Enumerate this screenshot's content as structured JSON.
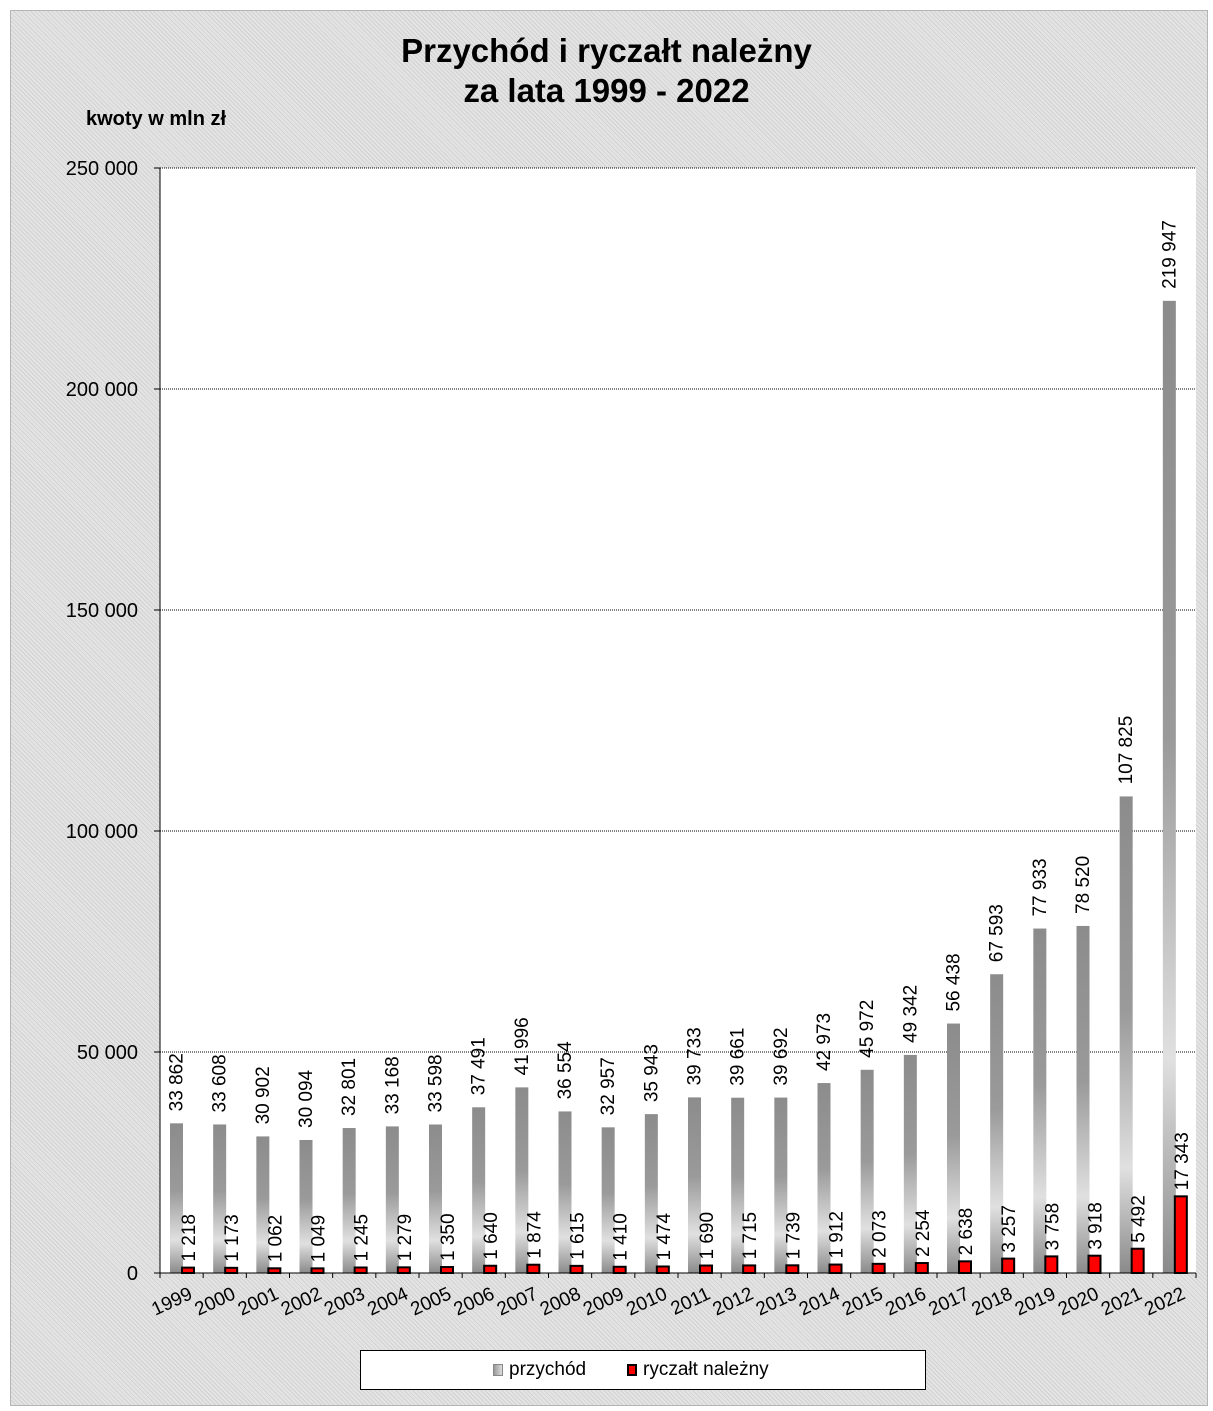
{
  "chart_data": {
    "type": "bar",
    "title": [
      "Przychód i ryczałt należny",
      "za lata 1999 - 2022"
    ],
    "unit_label": "kwoty w mln zł",
    "categories": [
      "1999",
      "2000",
      "2001",
      "2002",
      "2003",
      "2004",
      "2005",
      "2006",
      "2007",
      "2008",
      "2009",
      "2010",
      "2011",
      "2012",
      "2013",
      "2014",
      "2015",
      "2016",
      "2017",
      "2018",
      "2019",
      "2020",
      "2021",
      "2022"
    ],
    "series": [
      {
        "name": "przychód",
        "values": [
          33862,
          33608,
          30902,
          30094,
          32801,
          33168,
          33598,
          37491,
          41996,
          36554,
          32957,
          35943,
          39733,
          39661,
          39692,
          42973,
          45972,
          49342,
          56438,
          67593,
          77933,
          78520,
          107825,
          219947
        ],
        "labels": [
          "33 862",
          "33 608",
          "30 902",
          "30 094",
          "32 801",
          "33 168",
          "33 598",
          "37 491",
          "41 996",
          "36 554",
          "32 957",
          "35 943",
          "39 733",
          "39 661",
          "39 692",
          "42 973",
          "45 972",
          "49 342",
          "56 438",
          "67 593",
          "77 933",
          "78 520",
          "107 825",
          "219 947"
        ],
        "color": "#9a9a9a"
      },
      {
        "name": "ryczałt należny",
        "values": [
          1218,
          1173,
          1062,
          1049,
          1245,
          1279,
          1350,
          1640,
          1874,
          1615,
          1410,
          1474,
          1690,
          1715,
          1739,
          1912,
          2073,
          2254,
          2638,
          3257,
          3758,
          3918,
          5492,
          17343
        ],
        "labels": [
          "1 218",
          "1 173",
          "1 062",
          "1 049",
          "1 245",
          "1 279",
          "1 350",
          "1 640",
          "1 874",
          "1 615",
          "1 410",
          "1 474",
          "1 690",
          "1 715",
          "1 739",
          "1 912",
          "2 073",
          "2 254",
          "2 638",
          "3 257",
          "3 758",
          "3 918",
          "5 492",
          "17 343"
        ],
        "color": "#ff0000"
      }
    ],
    "yticks": [
      0,
      50000,
      100000,
      150000,
      200000,
      250000
    ],
    "ytick_labels": [
      "0",
      "50 000",
      "100 000",
      "150 000",
      "200 000",
      "250 000"
    ],
    "ylim": [
      0,
      250000
    ],
    "grid": true,
    "legend_position": "bottom"
  }
}
